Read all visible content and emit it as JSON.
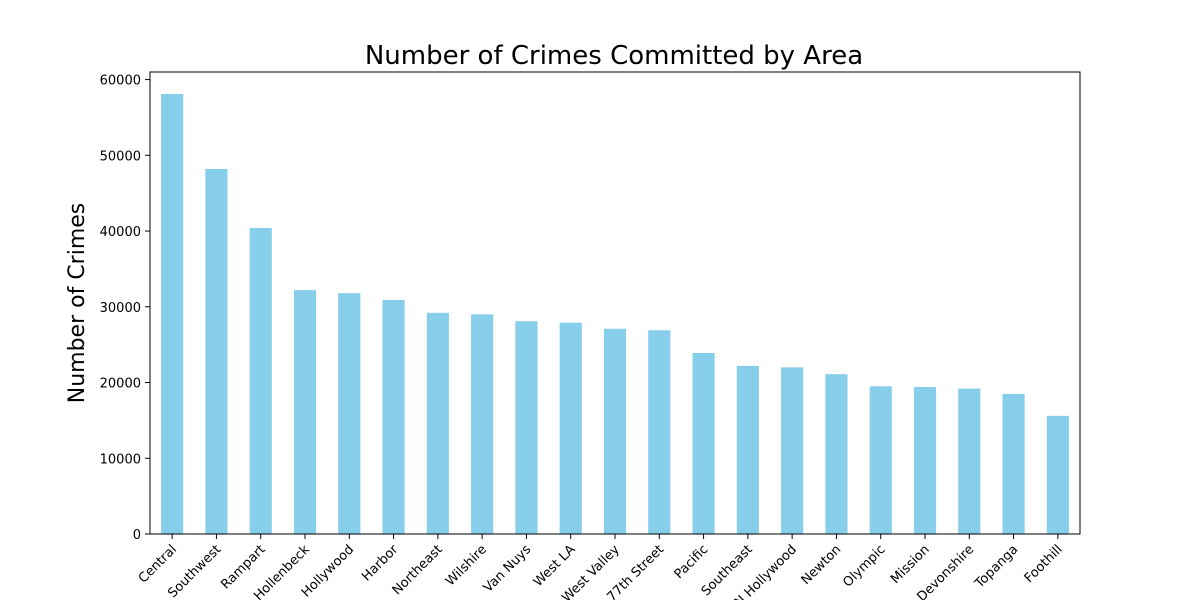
{
  "chart_data": {
    "type": "bar",
    "title": "Number of Crimes Committed by Area",
    "xlabel": "",
    "ylabel": "Number of Crimes",
    "ylim": [
      0,
      61000
    ],
    "yticks": [
      0,
      10000,
      20000,
      30000,
      40000,
      50000,
      60000
    ],
    "ytick_labels": [
      "0",
      "10000",
      "20000",
      "30000",
      "40000",
      "50000",
      "60000"
    ],
    "categories": [
      "Central",
      "Southwest",
      "Rampart",
      "Hollenbeck",
      "Hollywood",
      "Harbor",
      "Northeast",
      "Wilshire",
      "Van Nuys",
      "West LA",
      "West Valley",
      "77th Street",
      "Pacific",
      "Southeast",
      "N Hollywood",
      "Newton",
      "Olympic",
      "Mission",
      "Devonshire",
      "Topanga",
      "Foothill"
    ],
    "values": [
      58100,
      48200,
      40400,
      32200,
      31800,
      30900,
      29200,
      29000,
      28100,
      27900,
      27100,
      26900,
      23900,
      22200,
      22000,
      21100,
      19500,
      19400,
      19200,
      18500,
      15600
    ],
    "colors": {
      "bar": "#87CEEB",
      "axis": "#000000",
      "background": "#ffffff"
    },
    "grid": false,
    "legend": "none"
  }
}
